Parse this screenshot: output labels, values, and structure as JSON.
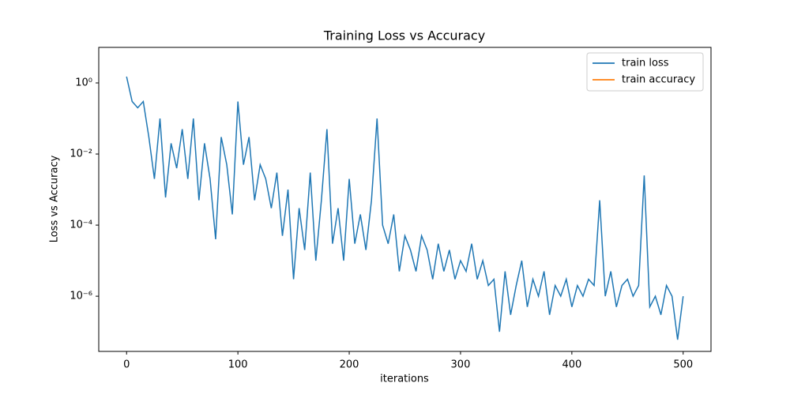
{
  "chart_data": {
    "type": "line",
    "title": "Training Loss vs Accuracy",
    "x_label": "iterations",
    "y_label": "Loss vs Accuracy",
    "x": [
      0,
      5,
      10,
      15,
      20,
      25,
      30,
      35,
      40,
      45,
      50,
      55,
      60,
      65,
      70,
      75,
      80,
      85,
      90,
      95,
      100,
      105,
      110,
      115,
      120,
      125,
      130,
      135,
      140,
      145,
      150,
      155,
      160,
      165,
      170,
      175,
      180,
      185,
      190,
      195,
      200,
      205,
      210,
      215,
      220,
      225,
      230,
      235,
      240,
      245,
      250,
      255,
      260,
      265,
      270,
      275,
      280,
      285,
      290,
      295,
      300,
      305,
      310,
      315,
      320,
      325,
      330,
      335,
      340,
      345,
      350,
      355,
      360,
      365,
      370,
      375,
      380,
      385,
      390,
      395,
      400,
      405,
      410,
      415,
      420,
      425,
      430,
      435,
      440,
      445,
      450,
      455,
      460,
      465,
      470,
      475,
      480,
      485,
      490,
      495,
      500
    ],
    "series": [
      {
        "name": "train loss",
        "color": "#1f77b4",
        "values": [
          1.5,
          0.3,
          0.2,
          0.3,
          0.03,
          0.002,
          0.1,
          0.0006,
          0.02,
          0.004,
          0.05,
          0.002,
          0.1,
          0.0005,
          0.02,
          0.002,
          4e-05,
          0.03,
          0.005,
          0.0002,
          0.3,
          0.005,
          0.03,
          0.0005,
          0.005,
          0.002,
          0.0003,
          0.003,
          5e-05,
          0.001,
          3e-06,
          0.0003,
          2e-05,
          0.003,
          1e-05,
          0.0005,
          0.05,
          3e-05,
          0.0003,
          1e-05,
          0.002,
          3e-05,
          0.0002,
          2e-05,
          0.0005,
          0.1,
          0.0001,
          3e-05,
          0.0002,
          5e-06,
          5e-05,
          2e-05,
          5e-06,
          5e-05,
          2e-05,
          3e-06,
          3e-05,
          5e-06,
          2e-05,
          3e-06,
          1e-05,
          5e-06,
          3e-05,
          3e-06,
          1e-05,
          2e-06,
          3e-06,
          1e-07,
          5e-06,
          3e-07,
          2e-06,
          1e-05,
          5e-07,
          3e-06,
          1e-06,
          5e-06,
          3e-07,
          2e-06,
          1e-06,
          3e-06,
          5e-07,
          2e-06,
          1e-06,
          3e-06,
          2e-06,
          0.0005,
          1e-06,
          5e-06,
          5e-07,
          2e-06,
          3e-06,
          1e-06,
          2e-06,
          0.0025,
          5e-07,
          1e-06,
          3e-07,
          2e-06,
          1e-06,
          6e-08,
          1e-06
        ]
      },
      {
        "name": "train accuracy",
        "color": "#ff7f0e",
        "values": [
          null,
          null,
          null,
          null,
          null,
          null,
          null,
          null,
          null,
          null,
          null,
          null,
          null,
          null,
          null,
          null,
          null,
          null,
          null,
          null,
          null,
          null,
          null,
          null,
          null,
          null,
          null,
          null,
          null,
          null,
          null,
          null,
          null,
          null,
          null,
          null,
          null,
          null,
          null,
          null,
          null,
          null,
          null,
          null,
          null,
          null,
          null,
          null,
          null,
          null,
          null,
          null,
          null,
          null,
          null,
          null,
          null,
          null,
          null,
          null,
          null,
          null,
          null,
          null,
          null,
          null,
          null,
          null,
          null,
          null,
          null,
          null,
          null,
          null,
          null,
          null,
          null,
          null,
          null,
          null,
          null,
          null,
          null,
          null,
          null,
          null,
          null,
          null,
          null,
          null,
          null,
          null,
          null,
          null,
          null,
          null,
          null,
          null,
          null,
          null,
          null
        ]
      }
    ],
    "xlim": [
      -25,
      525
    ],
    "xticks": [
      0,
      100,
      200,
      300,
      400,
      500
    ],
    "ylim": [
      10,
      2.8e-08
    ],
    "log_y": true,
    "yticks": [
      {
        "value": 1,
        "label": "10⁰"
      },
      {
        "value": 0.01,
        "label": "10⁻²"
      },
      {
        "value": 0.0001,
        "label": "10⁻⁴"
      },
      {
        "value": 1e-06,
        "label": "10⁻⁶"
      }
    ],
    "legend": "upper right"
  }
}
